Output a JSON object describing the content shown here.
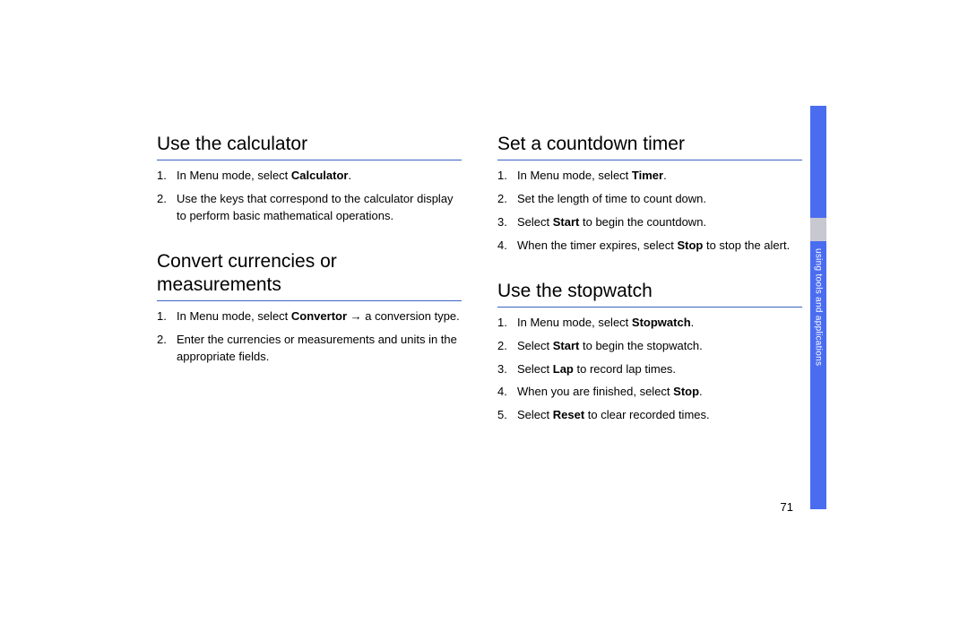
{
  "page_number": "71",
  "side_tab_label": "using tools and applications",
  "colors": {
    "accent_blue": "#4a6df0",
    "rule_blue": "#3b63c4",
    "tab_gray": "#c8c8d0",
    "text": "#000000",
    "tab_text": "#ffffff",
    "background": "#ffffff"
  },
  "left": {
    "calculator": {
      "heading": "Use the calculator",
      "steps": [
        {
          "pre": "In Menu mode, select ",
          "bold": "Calculator",
          "post": "."
        },
        {
          "pre": "Use the keys that correspond to the calculator display to perform basic mathematical operations.",
          "bold": "",
          "post": ""
        }
      ]
    },
    "convert": {
      "heading": "Convert currencies or measurements",
      "steps": [
        {
          "pre": "In Menu mode, select ",
          "bold": "Convertor",
          "post": " → a conversion type."
        },
        {
          "pre": "Enter the currencies or measurements and units in the appropriate fields.",
          "bold": "",
          "post": ""
        }
      ]
    }
  },
  "right": {
    "timer": {
      "heading": "Set a countdown timer",
      "steps": [
        {
          "pre": "In Menu mode, select ",
          "bold": "Timer",
          "post": "."
        },
        {
          "pre": "Set the length of time to count down.",
          "bold": "",
          "post": ""
        },
        {
          "pre": "Select ",
          "bold": "Start",
          "post": " to begin the countdown."
        },
        {
          "pre": "When the timer expires, select ",
          "bold": "Stop",
          "post": " to stop the alert."
        }
      ]
    },
    "stopwatch": {
      "heading": "Use the stopwatch",
      "steps": [
        {
          "pre": "In Menu mode, select ",
          "bold": "Stopwatch",
          "post": "."
        },
        {
          "pre": "Select ",
          "bold": "Start",
          "post": " to begin the stopwatch."
        },
        {
          "pre": "Select ",
          "bold": "Lap",
          "post": " to record lap times."
        },
        {
          "pre": "When you are finished, select ",
          "bold": "Stop",
          "post": "."
        },
        {
          "pre": "Select ",
          "bold": "Reset",
          "post": " to clear recorded times."
        }
      ]
    }
  }
}
